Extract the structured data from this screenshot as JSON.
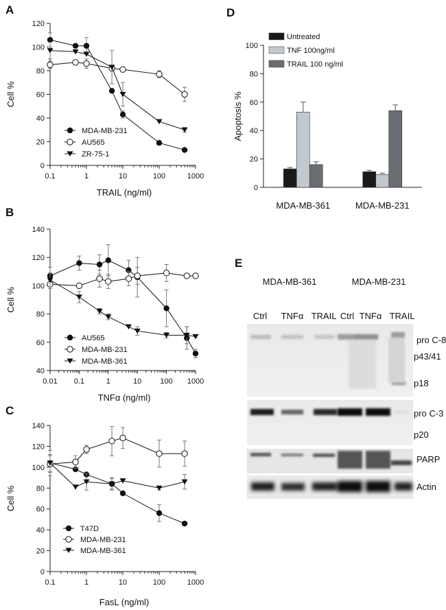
{
  "panels": {
    "A": "A",
    "B": "B",
    "C": "C",
    "D": "D",
    "E": "E"
  },
  "chart_data": [
    {
      "id": "A",
      "type": "line",
      "xscale": "log",
      "xlabel": "TRAIL (ng/ml)",
      "ylabel": "Cell %",
      "xlim": [
        0.1,
        1000
      ],
      "ylim": [
        0,
        120
      ],
      "xticks": [
        0.1,
        1,
        10,
        100,
        1000
      ],
      "xticklabels": [
        "0.1",
        "1",
        "10",
        "100",
        "1000"
      ],
      "yticks": [
        0,
        20,
        40,
        60,
        80,
        100,
        120
      ],
      "legend_position": "bottom-left",
      "series": [
        {
          "name": "MDA-MB-231",
          "marker": "filled-circle",
          "x": [
            0.1,
            0.5,
            1,
            5,
            10,
            100,
            500
          ],
          "y": [
            106,
            101,
            101,
            63,
            43,
            19,
            13
          ],
          "err": [
            6,
            0,
            7,
            0,
            3,
            0,
            0
          ]
        },
        {
          "name": "AU565",
          "marker": "open-circle",
          "x": [
            0.1,
            0.5,
            1,
            5,
            10,
            100,
            500
          ],
          "y": [
            85,
            87,
            86,
            82,
            81,
            77,
            60
          ],
          "err": [
            3,
            0,
            4,
            0,
            0,
            3,
            6
          ]
        },
        {
          "name": "ZR-75-1",
          "marker": "filled-triangle",
          "x": [
            0.1,
            0.5,
            1,
            5,
            10,
            100,
            500
          ],
          "y": [
            97,
            96,
            94,
            83,
            60,
            37,
            30
          ],
          "err": [
            7,
            0,
            0,
            14,
            10,
            0,
            2
          ]
        }
      ]
    },
    {
      "id": "B",
      "type": "line",
      "xscale": "log",
      "xlabel": "TNFα (ng/ml)",
      "ylabel": "Cell %",
      "xlim": [
        0.01,
        1000
      ],
      "ylim": [
        40,
        140
      ],
      "xticks": [
        0.01,
        0.1,
        1,
        10,
        100,
        1000
      ],
      "xticklabels": [
        "0.01",
        "0.1",
        "1",
        "10",
        "100",
        "1000"
      ],
      "yticks": [
        40,
        60,
        80,
        100,
        120,
        140
      ],
      "legend_position": "bottom-left",
      "series": [
        {
          "name": "AU565",
          "marker": "filled-circle",
          "x": [
            0.01,
            0.1,
            0.5,
            1,
            5,
            10,
            100,
            500,
            1000
          ],
          "y": [
            107,
            116,
            115,
            118,
            111,
            106,
            84,
            63,
            52
          ],
          "err": [
            6,
            5,
            7,
            11,
            7,
            14,
            13,
            8,
            3
          ]
        },
        {
          "name": "MDA-MB-231",
          "marker": "open-circle",
          "x": [
            0.01,
            0.1,
            0.5,
            1,
            5,
            10,
            100,
            500,
            1000
          ],
          "y": [
            101,
            100,
            105,
            103,
            105,
            107,
            109,
            107,
            107
          ],
          "err": [
            3,
            0,
            6,
            5,
            5,
            6,
            6,
            0,
            0
          ]
        },
        {
          "name": "MDA-MB-361",
          "marker": "filled-triangle",
          "x": [
            0.01,
            0.1,
            0.5,
            1,
            5,
            10,
            100,
            500,
            1000
          ],
          "y": [
            104,
            92,
            82,
            78,
            71,
            68,
            65,
            65,
            64
          ],
          "err": [
            5,
            4,
            2,
            2,
            0,
            3,
            2,
            6,
            0
          ]
        }
      ]
    },
    {
      "id": "C",
      "type": "line",
      "xscale": "log",
      "xlabel": "FasL (ng/ml)",
      "ylabel": "Cell %",
      "xlim": [
        0.1,
        1000
      ],
      "ylim": [
        0,
        140
      ],
      "xticks": [
        0.1,
        1,
        10,
        100,
        1000
      ],
      "xticklabels": [
        "0.1",
        "1",
        "10",
        "100",
        "1000"
      ],
      "yticks": [
        0,
        20,
        40,
        60,
        80,
        100,
        120,
        140
      ],
      "legend_position": "bottom-left",
      "series": [
        {
          "name": "T47D",
          "marker": "filled-circle",
          "x": [
            0.1,
            0.5,
            1,
            5,
            10,
            100,
            500
          ],
          "y": [
            104,
            98,
            93,
            84,
            75,
            56,
            46
          ],
          "err": [
            12,
            0,
            0,
            5,
            0,
            8,
            0
          ]
        },
        {
          "name": "MDA-MB-231",
          "marker": "open-circle",
          "x": [
            0.1,
            0.5,
            1,
            5,
            10,
            100,
            500
          ],
          "y": [
            103,
            105,
            117,
            125,
            128,
            113,
            113
          ],
          "err": [
            8,
            6,
            4,
            14,
            10,
            13,
            12
          ]
        },
        {
          "name": "MDA-MB-361",
          "marker": "filled-triangle",
          "x": [
            0.1,
            0.5,
            1,
            5,
            10,
            100,
            500
          ],
          "y": [
            104,
            81,
            86,
            84,
            87,
            80,
            86
          ],
          "err": [
            8,
            0,
            8,
            6,
            0,
            2,
            7
          ]
        }
      ]
    },
    {
      "id": "D",
      "type": "bar",
      "ylabel": "Apoptosis %",
      "ylim": [
        0,
        100
      ],
      "yticks": [
        0,
        20,
        40,
        60,
        80,
        100
      ],
      "categories": [
        "MDA-MB-361",
        "MDA-MB-231"
      ],
      "legend_position": "top-left",
      "series": [
        {
          "name": "Untreated",
          "color": "#1a1a1a",
          "values": [
            13,
            11
          ],
          "err": [
            1,
            1
          ]
        },
        {
          "name": "TNF 100ng/ml",
          "color": "#c3c8cd",
          "values": [
            53,
            9
          ],
          "err": [
            7,
            1
          ]
        },
        {
          "name": "TRAIL 100 ng/ml",
          "color": "#6a6e72",
          "values": [
            16,
            54
          ],
          "err": [
            2,
            4
          ]
        }
      ]
    }
  ],
  "blot": {
    "groups": [
      "MDA-MB-361",
      "MDA-MB-231"
    ],
    "lanes": [
      "Ctrl",
      "TNFα",
      "TRAIL",
      "Ctrl",
      "TNFα",
      "TRAIL"
    ],
    "labels": {
      "pro_c8": "pro C-8",
      "p43": "p43/41",
      "p18": "p18",
      "pro_c3": "pro C-3",
      "p20": "p20",
      "parp": "PARP",
      "actin": "Actin"
    }
  }
}
